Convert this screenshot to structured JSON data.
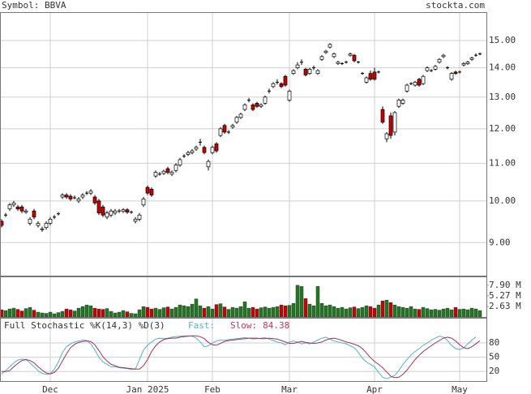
{
  "header": {
    "symbol": "Symbol: BBVA",
    "site": "stockta.com"
  },
  "chart_data": [
    {
      "type": "candlestick",
      "log_scale": true,
      "ylim": [
        8.28,
        16.08
      ],
      "yticks": [
        {
          "value": 15,
          "label": "15.00"
        },
        {
          "value": 14,
          "label": "14.00"
        },
        {
          "value": 13,
          "label": "13.00"
        },
        {
          "value": 12,
          "label": "12.00"
        },
        {
          "value": 11,
          "label": "11.00"
        },
        {
          "value": 10,
          "label": "10.00"
        },
        {
          "value": 9,
          "label": "9.00"
        }
      ],
      "grid": true,
      "up_color": "#ffffff",
      "down_color": "#cc0000",
      "open": [
        9.5,
        9.65,
        9.8,
        9.9,
        9.85,
        9.85,
        9.72,
        9.45,
        9.75,
        9.4,
        9.3,
        9.35,
        9.45,
        9.6,
        9.68,
        10.1,
        10.15,
        10.12,
        10.08,
        10.0,
        10.1,
        10.2,
        10.2,
        10.1,
        10.0,
        9.85,
        9.6,
        9.65,
        9.7,
        9.75,
        9.74,
        9.78,
        9.72,
        9.5,
        9.55,
        9.9,
        10.35,
        10.3,
        10.65,
        10.7,
        10.72,
        10.85,
        10.7,
        10.8,
        10.95,
        11.2,
        11.25,
        11.3,
        11.4,
        11.6,
        11.45,
        10.9,
        11.3,
        11.55,
        11.8,
        12.1,
        11.9,
        12.05,
        12.2,
        12.35,
        12.6,
        12.9,
        12.75,
        12.8,
        12.7,
        12.8,
        13.2,
        13.35,
        13.5,
        13.45,
        13.7,
        12.9,
        13.8,
        14.0,
        14.2,
        13.95,
        13.8,
        14.0,
        13.8,
        14.3,
        14.55,
        14.75,
        14.4,
        14.15,
        14.15,
        14.2,
        14.45,
        14.45,
        14.2,
        13.8,
        13.5,
        13.8,
        13.85,
        13.85,
        12.6,
        11.7,
        12.4,
        11.9,
        12.7,
        12.8,
        13.2,
        13.45,
        13.4,
        13.6,
        13.45,
        13.9,
        13.9,
        13.95,
        14.2,
        14.4,
        14.0,
        13.6,
        13.85,
        13.85,
        14.1,
        14.15,
        14.3,
        14.45,
        14.5
      ],
      "high": [
        9.55,
        9.7,
        9.95,
        10.0,
        9.9,
        9.9,
        9.8,
        9.6,
        9.8,
        9.5,
        9.37,
        9.5,
        9.6,
        9.65,
        9.72,
        10.2,
        10.2,
        10.17,
        10.14,
        10.1,
        10.2,
        10.25,
        10.3,
        10.15,
        10.05,
        9.9,
        9.75,
        9.8,
        9.8,
        9.8,
        9.82,
        9.82,
        9.76,
        9.6,
        9.7,
        10.1,
        10.4,
        10.35,
        10.8,
        10.76,
        10.82,
        10.9,
        10.8,
        11.0,
        11.15,
        11.25,
        11.35,
        11.4,
        11.5,
        11.7,
        11.5,
        11.1,
        11.5,
        11.6,
        12.05,
        12.15,
        11.96,
        12.15,
        12.4,
        12.5,
        12.8,
        12.97,
        12.8,
        12.85,
        12.8,
        13.05,
        13.28,
        13.5,
        13.6,
        13.5,
        13.75,
        13.25,
        13.95,
        14.2,
        14.3,
        14.0,
        14.0,
        14.08,
        13.95,
        14.45,
        14.65,
        14.9,
        14.55,
        14.25,
        14.2,
        14.25,
        14.55,
        14.5,
        14.25,
        13.85,
        13.7,
        13.9,
        14.0,
        13.9,
        12.7,
        11.9,
        12.5,
        12.55,
        12.95,
        12.95,
        13.45,
        13.5,
        13.55,
        13.65,
        13.75,
        14.05,
        13.95,
        14.1,
        14.35,
        14.5,
        14.05,
        13.85,
        13.9,
        13.9,
        14.2,
        14.25,
        14.4,
        14.52,
        14.55
      ],
      "low": [
        9.35,
        9.6,
        9.75,
        9.85,
        9.75,
        9.7,
        9.68,
        9.4,
        9.55,
        9.35,
        9.25,
        9.3,
        9.4,
        9.55,
        9.64,
        10.05,
        10.05,
        10.0,
        10.04,
        9.95,
        10.05,
        10.15,
        10.15,
        9.9,
        9.65,
        9.6,
        9.55,
        9.6,
        9.65,
        9.7,
        9.7,
        9.68,
        9.68,
        9.45,
        9.5,
        9.85,
        10.15,
        10.1,
        10.6,
        10.66,
        10.68,
        10.7,
        10.65,
        10.75,
        10.9,
        11.15,
        11.2,
        11.25,
        11.35,
        11.5,
        11.25,
        10.8,
        11.25,
        11.3,
        11.75,
        11.85,
        11.84,
        12.0,
        12.15,
        12.3,
        12.55,
        12.83,
        12.55,
        12.65,
        12.65,
        12.75,
        13.12,
        13.3,
        13.42,
        13.3,
        13.35,
        12.85,
        13.75,
        13.95,
        14.1,
        13.7,
        13.75,
        13.92,
        13.75,
        14.25,
        14.5,
        14.7,
        14.35,
        14.1,
        14.1,
        14.15,
        14.4,
        14.2,
        14.15,
        13.75,
        13.45,
        13.55,
        13.55,
        13.8,
        12.15,
        11.6,
        11.7,
        11.8,
        12.65,
        12.75,
        13.15,
        13.4,
        13.35,
        13.35,
        13.4,
        13.85,
        13.85,
        13.9,
        14.15,
        14.35,
        13.95,
        13.55,
        13.75,
        13.8,
        14.05,
        14.1,
        14.25,
        14.4,
        14.45
      ],
      "close": [
        9.4,
        9.65,
        9.9,
        9.95,
        9.8,
        9.75,
        9.75,
        9.55,
        9.6,
        9.45,
        9.32,
        9.45,
        9.55,
        9.6,
        9.68,
        10.15,
        10.1,
        10.05,
        10.1,
        10.05,
        10.15,
        10.2,
        10.25,
        9.95,
        9.7,
        9.65,
        9.7,
        9.75,
        9.75,
        9.75,
        9.78,
        9.72,
        9.72,
        9.55,
        9.65,
        10.05,
        10.2,
        10.15,
        10.75,
        10.72,
        10.78,
        10.75,
        10.75,
        10.95,
        11.1,
        11.2,
        11.3,
        11.35,
        11.45,
        11.6,
        11.3,
        11.05,
        11.45,
        11.35,
        12.0,
        11.9,
        11.9,
        12.1,
        12.35,
        12.45,
        12.75,
        12.9,
        12.6,
        12.7,
        12.75,
        13.0,
        13.2,
        13.45,
        13.5,
        13.35,
        13.4,
        13.2,
        13.9,
        14.1,
        14.2,
        13.75,
        13.95,
        14.0,
        13.9,
        14.4,
        14.6,
        14.85,
        14.5,
        14.2,
        14.15,
        14.2,
        14.5,
        14.25,
        14.2,
        13.8,
        13.65,
        13.6,
        13.6,
        13.85,
        12.2,
        11.85,
        11.8,
        12.5,
        12.9,
        12.9,
        13.4,
        13.45,
        13.5,
        13.4,
        13.7,
        14.0,
        13.9,
        14.05,
        14.3,
        14.45,
        14.0,
        13.8,
        13.8,
        13.85,
        14.15,
        14.2,
        14.35,
        14.45,
        14.5
      ]
    },
    {
      "type": "bar",
      "up_color": "#1e7a1e",
      "down_color": "#cc0000",
      "ylim": [
        0,
        9.9
      ],
      "yticks": [
        {
          "value": 7.9,
          "label": "7.90 M"
        },
        {
          "value": 5.27,
          "label": "5.27 M"
        },
        {
          "value": 2.63,
          "label": "2.63 M"
        }
      ],
      "values": [
        1.8,
        1.6,
        2.0,
        2.2,
        1.9,
        1.5,
        2.1,
        2.4,
        1.7,
        1.2,
        1.0,
        0.9,
        1.2,
        0.8,
        1.1,
        1.4,
        2.0,
        1.8,
        1.5,
        2.2,
        2.6,
        3.0,
        2.8,
        2.2,
        2.0,
        1.9,
        2.1,
        1.4,
        1.0,
        1.2,
        1.6,
        1.3,
        0.9,
        0.8,
        1.8,
        2.6,
        2.4,
        2.0,
        2.2,
        1.9,
        2.3,
        2.5,
        2.0,
        2.4,
        3.0,
        2.8,
        2.6,
        3.2,
        4.5,
        2.8,
        2.2,
        2.6,
        2.0,
        3.1,
        3.3,
        2.5,
        1.9,
        2.4,
        2.2,
        2.6,
        3.8,
        2.2,
        2.4,
        2.0,
        2.3,
        2.5,
        2.2,
        2.4,
        2.6,
        3.0,
        2.8,
        2.9,
        3.4,
        7.9,
        7.6,
        4.6,
        3.2,
        2.8,
        7.6,
        3.4,
        2.8,
        3.0,
        2.6,
        2.2,
        2.4,
        2.0,
        2.3,
        2.5,
        2.1,
        2.4,
        2.8,
        2.6,
        2.2,
        3.0,
        4.0,
        4.2,
        3.6,
        3.0,
        2.6,
        2.4,
        2.2,
        2.6,
        2.0,
        1.9,
        2.4,
        2.1,
        1.8,
        1.9,
        1.7,
        2.0,
        2.2,
        1.8,
        2.4,
        1.9,
        2.0,
        1.8,
        2.2,
        2.0,
        1.6
      ]
    },
    {
      "type": "line",
      "title": "Full Stochastic %K(14,3) %D(3)",
      "ylim": [
        0,
        131
      ],
      "yticks": [
        80,
        50,
        20
      ],
      "grid": true,
      "xlim": [
        -0.4,
        119.6
      ],
      "xticks": [
        {
          "value": 12,
          "label": "Dec"
        },
        {
          "value": 36,
          "label": "Jan 2025"
        },
        {
          "value": 52,
          "label": "Feb"
        },
        {
          "value": 71,
          "label": "Mar"
        },
        {
          "value": 92,
          "label": "Apr"
        },
        {
          "value": 113,
          "label": "May"
        }
      ],
      "series": [
        {
          "name": "Fast:",
          "color": "#4fb3c8",
          "values": [
            15,
            22,
            30,
            38,
            44,
            46,
            45,
            38,
            30,
            22,
            16,
            14,
            15,
            25,
            40,
            60,
            72,
            78,
            82,
            84,
            86,
            85,
            78,
            65,
            50,
            40,
            35,
            30,
            30,
            28,
            27,
            26,
            24,
            25,
            45,
            65,
            75,
            82,
            88,
            90,
            89,
            90,
            92,
            93,
            94,
            95,
            95,
            94,
            90,
            82,
            72,
            74,
            80,
            84,
            86,
            85,
            87,
            88,
            89,
            90,
            91,
            90,
            88,
            89,
            90,
            91,
            88,
            85,
            82,
            80,
            76,
            82,
            84,
            82,
            78,
            80,
            78,
            82,
            86,
            90,
            92,
            88,
            84,
            82,
            80,
            78,
            74,
            70,
            60,
            48,
            40,
            35,
            30,
            18,
            8,
            5,
            8,
            12,
            22,
            35,
            45,
            55,
            62,
            68,
            75,
            80,
            86,
            90,
            94,
            92,
            85,
            75,
            68,
            66,
            70,
            78,
            86,
            92.34
          ]
        },
        {
          "name": "Slow:",
          "color": "#a33050",
          "values": [
            20,
            20,
            22,
            30,
            37,
            43,
            45,
            43,
            38,
            30,
            23,
            17,
            15,
            18,
            27,
            42,
            57,
            70,
            77,
            81,
            83,
            84,
            83,
            76,
            64,
            51,
            42,
            35,
            32,
            29,
            28,
            27,
            26,
            25,
            25,
            32,
            45,
            62,
            74,
            82,
            87,
            89,
            90,
            90,
            92,
            93,
            94,
            95,
            95,
            93,
            89,
            81,
            76,
            75,
            79,
            83,
            85,
            86,
            87,
            88,
            89,
            90,
            90,
            90,
            89,
            89,
            90,
            89,
            88,
            85,
            82,
            79,
            79,
            81,
            83,
            81,
            80,
            79,
            80,
            82,
            86,
            89,
            90,
            88,
            85,
            82,
            80,
            77,
            74,
            68,
            59,
            49,
            41,
            35,
            28,
            19,
            10,
            7,
            8,
            14,
            23,
            34,
            45,
            54,
            62,
            68,
            74,
            80,
            85,
            90,
            92,
            90,
            84,
            76,
            70,
            68,
            72,
            78,
            84.38
          ]
        }
      ]
    }
  ]
}
